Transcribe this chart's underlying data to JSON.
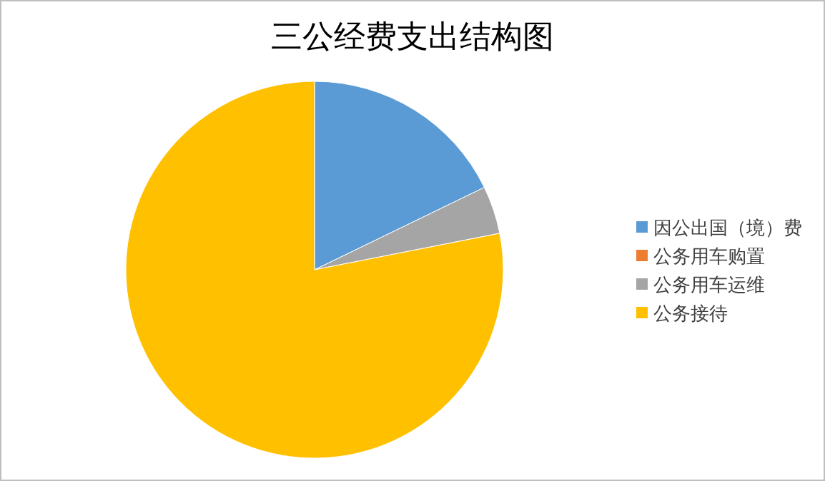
{
  "chart_data": {
    "type": "pie",
    "title": "三公经费支出结构图",
    "categories": [
      "因公出国（境）费",
      "公务用车购置",
      "公务用车运维",
      "公务接待"
    ],
    "values": [
      17.8,
      0,
      4.1,
      78.1
    ],
    "colors": [
      "#5b9bd5",
      "#ed7d31",
      "#a5a5a5",
      "#ffc000"
    ],
    "legend": "right"
  }
}
